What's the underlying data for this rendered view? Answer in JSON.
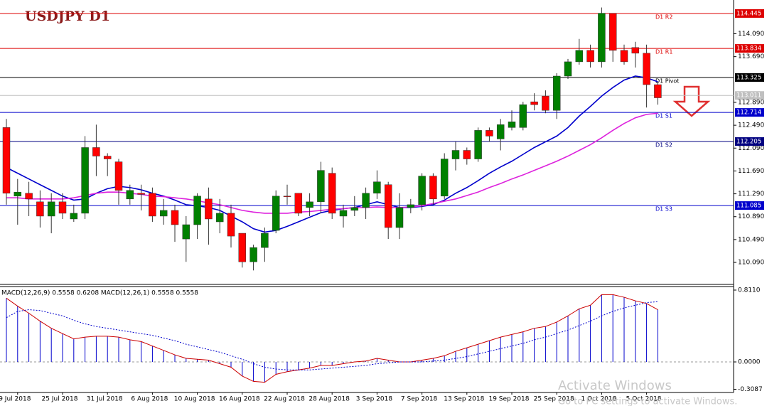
{
  "chart_data": {
    "type": "candlestick",
    "title": "USDJPY  D1",
    "categories": [
      null,
      "9 Jul 2018",
      null,
      null,
      null,
      "25 Jul 2018",
      null,
      null,
      null,
      "31 Jul 2018",
      null,
      null,
      null,
      "6 Aug 2018",
      null,
      null,
      null,
      "10 Aug 2018",
      null,
      null,
      null,
      "16 Aug 2018",
      null,
      null,
      null,
      "22 Aug 2018",
      null,
      null,
      null,
      "28 Aug 2018",
      null,
      null,
      null,
      "3 Sep 2018",
      null,
      null,
      null,
      "7 Sep 2018",
      null,
      null,
      null,
      "13 Sep 2018",
      null,
      null,
      null,
      "19 Sep 2018",
      null,
      null,
      null,
      "25 Sep 2018",
      null,
      null,
      null,
      "1 Oct 2018",
      null,
      null,
      null,
      "5 Oct 2018",
      null
    ],
    "open": [
      112.45,
      111.25,
      111.3,
      111.15,
      110.9,
      111.15,
      110.85,
      110.95,
      112.1,
      111.95,
      111.85,
      111.2,
      111.3,
      111.3,
      110.9,
      111.0,
      110.5,
      110.75,
      111.2,
      110.8,
      110.95,
      110.6,
      110.1,
      110.35,
      110.65,
      111.25,
      111.3,
      111.05,
      111.15,
      111.65,
      110.9,
      111.0,
      111.05,
      111.3,
      111.45,
      110.7,
      111.05,
      111.1,
      111.6,
      111.25,
      111.9,
      112.05,
      111.9,
      112.4,
      112.25,
      112.45,
      112.45,
      112.9,
      113.0,
      112.75,
      113.35,
      113.6,
      113.8,
      113.6,
      114.45,
      113.8,
      113.85,
      113.75,
      113.2
    ],
    "high": [
      112.6,
      111.55,
      111.5,
      111.35,
      111.3,
      111.3,
      111.1,
      112.3,
      112.5,
      112.0,
      111.9,
      111.45,
      111.45,
      111.4,
      111.2,
      111.1,
      110.9,
      111.3,
      111.4,
      111.2,
      111.1,
      110.6,
      110.4,
      110.7,
      111.35,
      111.45,
      111.3,
      111.3,
      111.85,
      111.75,
      111.1,
      111.25,
      111.4,
      111.7,
      111.5,
      111.3,
      111.2,
      111.65,
      111.65,
      112.0,
      112.2,
      112.1,
      112.45,
      112.45,
      112.6,
      112.75,
      112.9,
      113.05,
      113.1,
      113.4,
      113.65,
      114.0,
      113.9,
      114.55,
      114.45,
      113.9,
      113.95,
      113.9,
      113.25
    ],
    "low": [
      111.1,
      110.75,
      110.9,
      110.7,
      110.6,
      110.85,
      110.8,
      110.85,
      111.6,
      111.6,
      111.1,
      111.1,
      111.0,
      110.8,
      110.75,
      110.45,
      110.1,
      110.5,
      110.4,
      110.6,
      110.35,
      110.0,
      109.95,
      110.1,
      110.6,
      111.1,
      110.9,
      110.9,
      110.95,
      110.85,
      110.7,
      110.9,
      110.85,
      111.2,
      110.5,
      110.5,
      110.95,
      111.0,
      111.1,
      111.2,
      111.7,
      111.8,
      111.85,
      112.2,
      112.05,
      112.4,
      112.4,
      112.75,
      112.7,
      112.6,
      113.3,
      113.55,
      113.5,
      113.5,
      113.6,
      113.55,
      113.5,
      112.8,
      112.85
    ],
    "close": [
      111.3,
      111.32,
      111.2,
      110.9,
      111.15,
      110.95,
      110.95,
      112.1,
      111.95,
      111.9,
      111.35,
      111.35,
      111.28,
      110.9,
      111.0,
      110.75,
      110.75,
      111.25,
      110.85,
      110.95,
      110.55,
      110.1,
      110.35,
      110.6,
      111.25,
      111.24,
      110.95,
      111.15,
      111.7,
      110.95,
      111.0,
      111.05,
      111.3,
      111.5,
      110.7,
      111.05,
      111.1,
      111.6,
      111.2,
      111.9,
      112.05,
      111.9,
      112.4,
      112.3,
      112.5,
      112.55,
      112.85,
      112.85,
      112.75,
      113.35,
      113.6,
      113.8,
      113.6,
      114.45,
      113.8,
      113.6,
      113.75,
      113.2,
      112.97
    ],
    "up_color": "#008000",
    "down_color": "#ff0000",
    "ma_lines": [
      {
        "color": "#0000cc",
        "values": [
          111.75,
          111.65,
          111.55,
          111.45,
          111.35,
          111.25,
          111.18,
          111.2,
          111.3,
          111.38,
          111.42,
          111.4,
          111.36,
          111.3,
          111.25,
          111.18,
          111.1,
          111.08,
          111.05,
          111.0,
          110.9,
          110.8,
          110.68,
          110.62,
          110.65,
          110.72,
          110.8,
          110.88,
          110.96,
          111.0,
          111.03,
          111.05,
          111.1,
          111.15,
          111.1,
          111.05,
          111.05,
          111.07,
          111.1,
          111.18,
          111.3,
          111.4,
          111.52,
          111.65,
          111.76,
          111.86,
          111.98,
          112.1,
          112.2,
          112.3,
          112.45,
          112.65,
          112.82,
          113.0,
          113.15,
          113.28,
          113.35,
          113.32,
          113.25
        ]
      },
      {
        "color": "#dd22dd",
        "values": [
          111.22,
          111.22,
          111.2,
          111.2,
          111.2,
          111.2,
          111.22,
          111.26,
          111.3,
          111.32,
          111.32,
          111.3,
          111.28,
          111.25,
          111.24,
          111.22,
          111.2,
          111.17,
          111.13,
          111.1,
          111.05,
          111.0,
          110.97,
          110.95,
          110.95,
          110.95,
          110.97,
          110.98,
          111.0,
          111.02,
          111.03,
          111.05,
          111.05,
          111.06,
          111.05,
          111.05,
          111.06,
          111.08,
          111.12,
          111.16,
          111.2,
          111.26,
          111.32,
          111.4,
          111.47,
          111.55,
          111.62,
          111.7,
          111.78,
          111.86,
          111.95,
          112.05,
          112.15,
          112.27,
          112.4,
          112.52,
          112.62,
          112.68,
          112.7
        ]
      }
    ],
    "ylim": [
      109.705,
      114.681
    ],
    "yticks": [
      {
        "value": 114.09,
        "label": "114.090"
      },
      {
        "value": 113.69,
        "label": "113.690"
      },
      {
        "value": 112.89,
        "label": "112.890"
      },
      {
        "value": 112.49,
        "label": "112.490"
      },
      {
        "value": 112.09,
        "label": "112.090"
      },
      {
        "value": 111.69,
        "label": "111.690"
      },
      {
        "value": 111.29,
        "label": "111.290"
      },
      {
        "value": 110.89,
        "label": "110.890"
      },
      {
        "value": 110.49,
        "label": "110.490"
      },
      {
        "value": 110.09,
        "label": "110.090"
      }
    ],
    "levels": [
      {
        "value": 114.445,
        "label": "D1 R2",
        "color": "#dd0000"
      },
      {
        "value": 113.834,
        "label": "D1 R1",
        "color": "#dd0000"
      },
      {
        "value": 113.325,
        "label": "D1 Pivot",
        "color": "#000000"
      },
      {
        "value": 113.011,
        "color": "#c0c0c0"
      },
      {
        "value": 112.714,
        "label": "D1 S1",
        "color": "#0000cc"
      },
      {
        "value": 112.205,
        "label": "D1 S2",
        "color": "#000080"
      },
      {
        "value": 111.085,
        "label": "D1 S3",
        "color": "#0000cc"
      }
    ],
    "macd": {
      "label": "MACD(12,26,9) 0.5558 0.6208 MACD(12,26,1) 0.5558 0.5558",
      "ylim": [
        -0.345,
        0.851
      ],
      "yticks": [
        {
          "value": 0.811,
          "label": "0.8110"
        },
        {
          "value": 0,
          "label": "0.0000"
        },
        -0.3087
      ],
      "histogram_color": "#0000cc",
      "line_color": "#cc0000",
      "signal_color": "#0000cc",
      "values": [
        0.72,
        0.63,
        0.55,
        0.46,
        0.38,
        0.32,
        0.26,
        0.28,
        0.29,
        0.29,
        0.28,
        0.25,
        0.23,
        0.18,
        0.13,
        0.08,
        0.04,
        0.03,
        0.02,
        -0.02,
        -0.06,
        -0.16,
        -0.22,
        -0.23,
        -0.14,
        -0.11,
        -0.09,
        -0.07,
        -0.04,
        -0.04,
        -0.02,
        0.0,
        0.01,
        0.04,
        0.02,
        0.0,
        0.0,
        0.02,
        0.04,
        0.07,
        0.12,
        0.16,
        0.2,
        0.24,
        0.28,
        0.31,
        0.34,
        0.38,
        0.4,
        0.45,
        0.52,
        0.6,
        0.64,
        0.76,
        0.76,
        0.73,
        0.69,
        0.66,
        0.59
      ],
      "signal": [
        0.5,
        0.57,
        0.59,
        0.58,
        0.55,
        0.52,
        0.47,
        0.43,
        0.4,
        0.38,
        0.36,
        0.34,
        0.32,
        0.3,
        0.27,
        0.24,
        0.2,
        0.17,
        0.14,
        0.11,
        0.07,
        0.03,
        -0.02,
        -0.06,
        -0.08,
        -0.09,
        -0.09,
        -0.09,
        -0.08,
        -0.07,
        -0.06,
        -0.05,
        -0.04,
        -0.02,
        -0.01,
        0.0,
        0.0,
        0.0,
        0.01,
        0.02,
        0.04,
        0.06,
        0.09,
        0.12,
        0.15,
        0.18,
        0.21,
        0.25,
        0.28,
        0.32,
        0.36,
        0.41,
        0.46,
        0.52,
        0.57,
        0.61,
        0.64,
        0.67,
        0.68
      ]
    },
    "watermark": {
      "title": "Activate Windows",
      "subtitle": "Go to PC settings to activate Windows."
    }
  }
}
